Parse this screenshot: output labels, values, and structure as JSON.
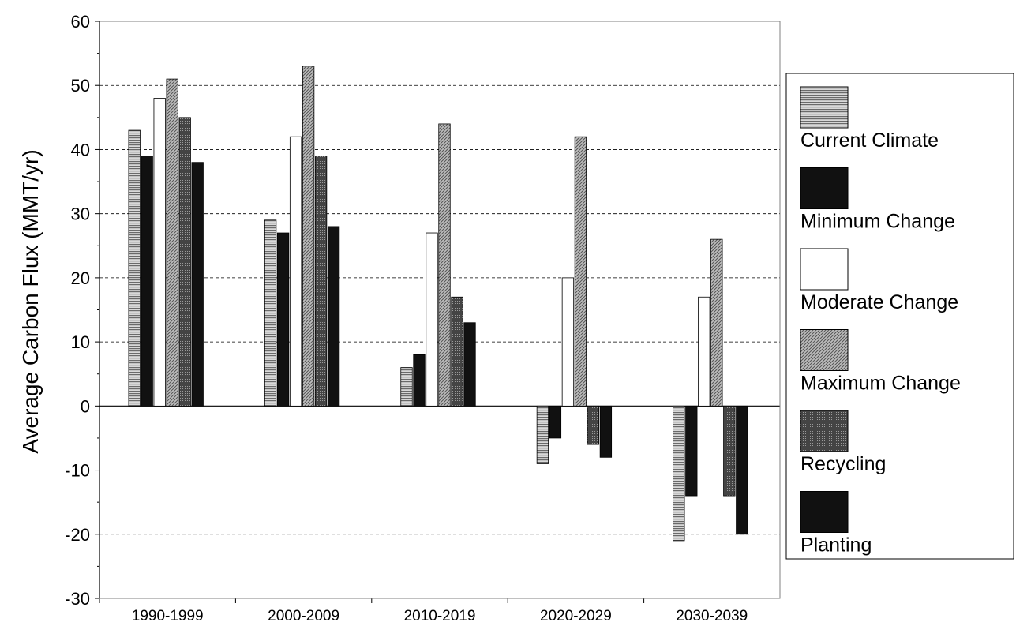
{
  "chart_data": {
    "type": "bar",
    "categories": [
      "1990-1999",
      "2000-2009",
      "2010-2019",
      "2020-2029",
      "2030-2039"
    ],
    "series": [
      {
        "name": "Current Climate",
        "values": [
          43,
          29,
          6,
          -9,
          -21
        ],
        "color": "#b0b0b0",
        "pattern": "horizontal-lines"
      },
      {
        "name": "Minimum Change",
        "values": [
          39,
          27,
          8,
          -5,
          -14
        ],
        "color": "#111111",
        "pattern": "solid"
      },
      {
        "name": "Moderate Change",
        "values": [
          48,
          42,
          27,
          20,
          17
        ],
        "color": "#ffffff",
        "pattern": "solid"
      },
      {
        "name": "Maximum Change",
        "values": [
          51,
          53,
          44,
          42,
          26
        ],
        "color": "#9a9a9a",
        "pattern": "diagonal-lines"
      },
      {
        "name": "Recycling",
        "values": [
          45,
          39,
          17,
          -6,
          -14
        ],
        "color": "#555555",
        "pattern": "dots"
      },
      {
        "name": "Planting",
        "values": [
          38,
          28,
          13,
          -8,
          -20
        ],
        "color": "#111111",
        "pattern": "solid"
      }
    ],
    "title": "",
    "xlabel": "",
    "ylabel": "Average Carbon Flux (MMT/yr)",
    "ylim": [
      -30,
      60
    ],
    "yticks": [
      -30,
      -20,
      -10,
      0,
      10,
      20,
      30,
      40,
      50,
      60
    ],
    "grid": true,
    "legend_position": "right"
  }
}
